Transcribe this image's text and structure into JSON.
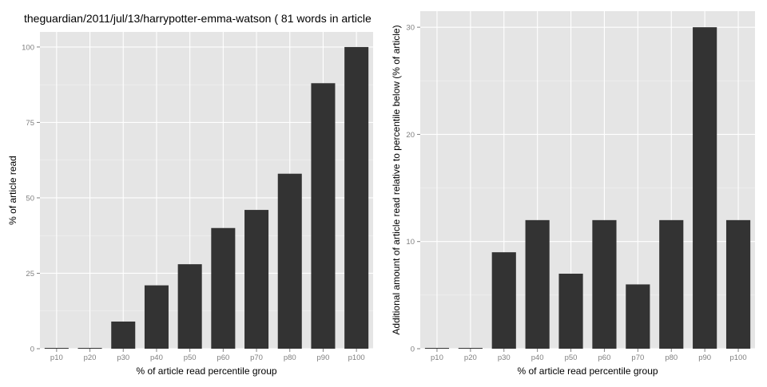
{
  "chart_data": [
    {
      "type": "bar",
      "title": "theguardian/2011/jul/13/harrypotter-emma-watson ( 81 words in article",
      "xlabel": "% of article read percentile group",
      "ylabel": "% of article read",
      "categories": [
        "p10",
        "p20",
        "p30",
        "p40",
        "p50",
        "p60",
        "p70",
        "p80",
        "p90",
        "p100"
      ],
      "values": [
        0,
        0,
        9,
        21,
        28,
        40,
        46,
        58,
        88,
        100
      ],
      "ylim": [
        0,
        105
      ],
      "yticks": [
        0,
        25,
        50,
        75,
        100
      ],
      "grid": true,
      "background": "#e5e5e5",
      "bar_color": "#333333"
    },
    {
      "type": "bar",
      "title": "",
      "xlabel": "% of article read percentile group",
      "ylabel": "Additional amount of article read relative to percentile below (% of article)",
      "categories": [
        "p10",
        "p20",
        "p30",
        "p40",
        "p50",
        "p60",
        "p70",
        "p80",
        "p90",
        "p100"
      ],
      "values": [
        0,
        0,
        9,
        12,
        7,
        12,
        6,
        12,
        30,
        12
      ],
      "ylim": [
        0,
        31.5
      ],
      "yticks": [
        0,
        10,
        20,
        30
      ],
      "grid": true,
      "background": "#e5e5e5",
      "bar_color": "#333333"
    }
  ]
}
